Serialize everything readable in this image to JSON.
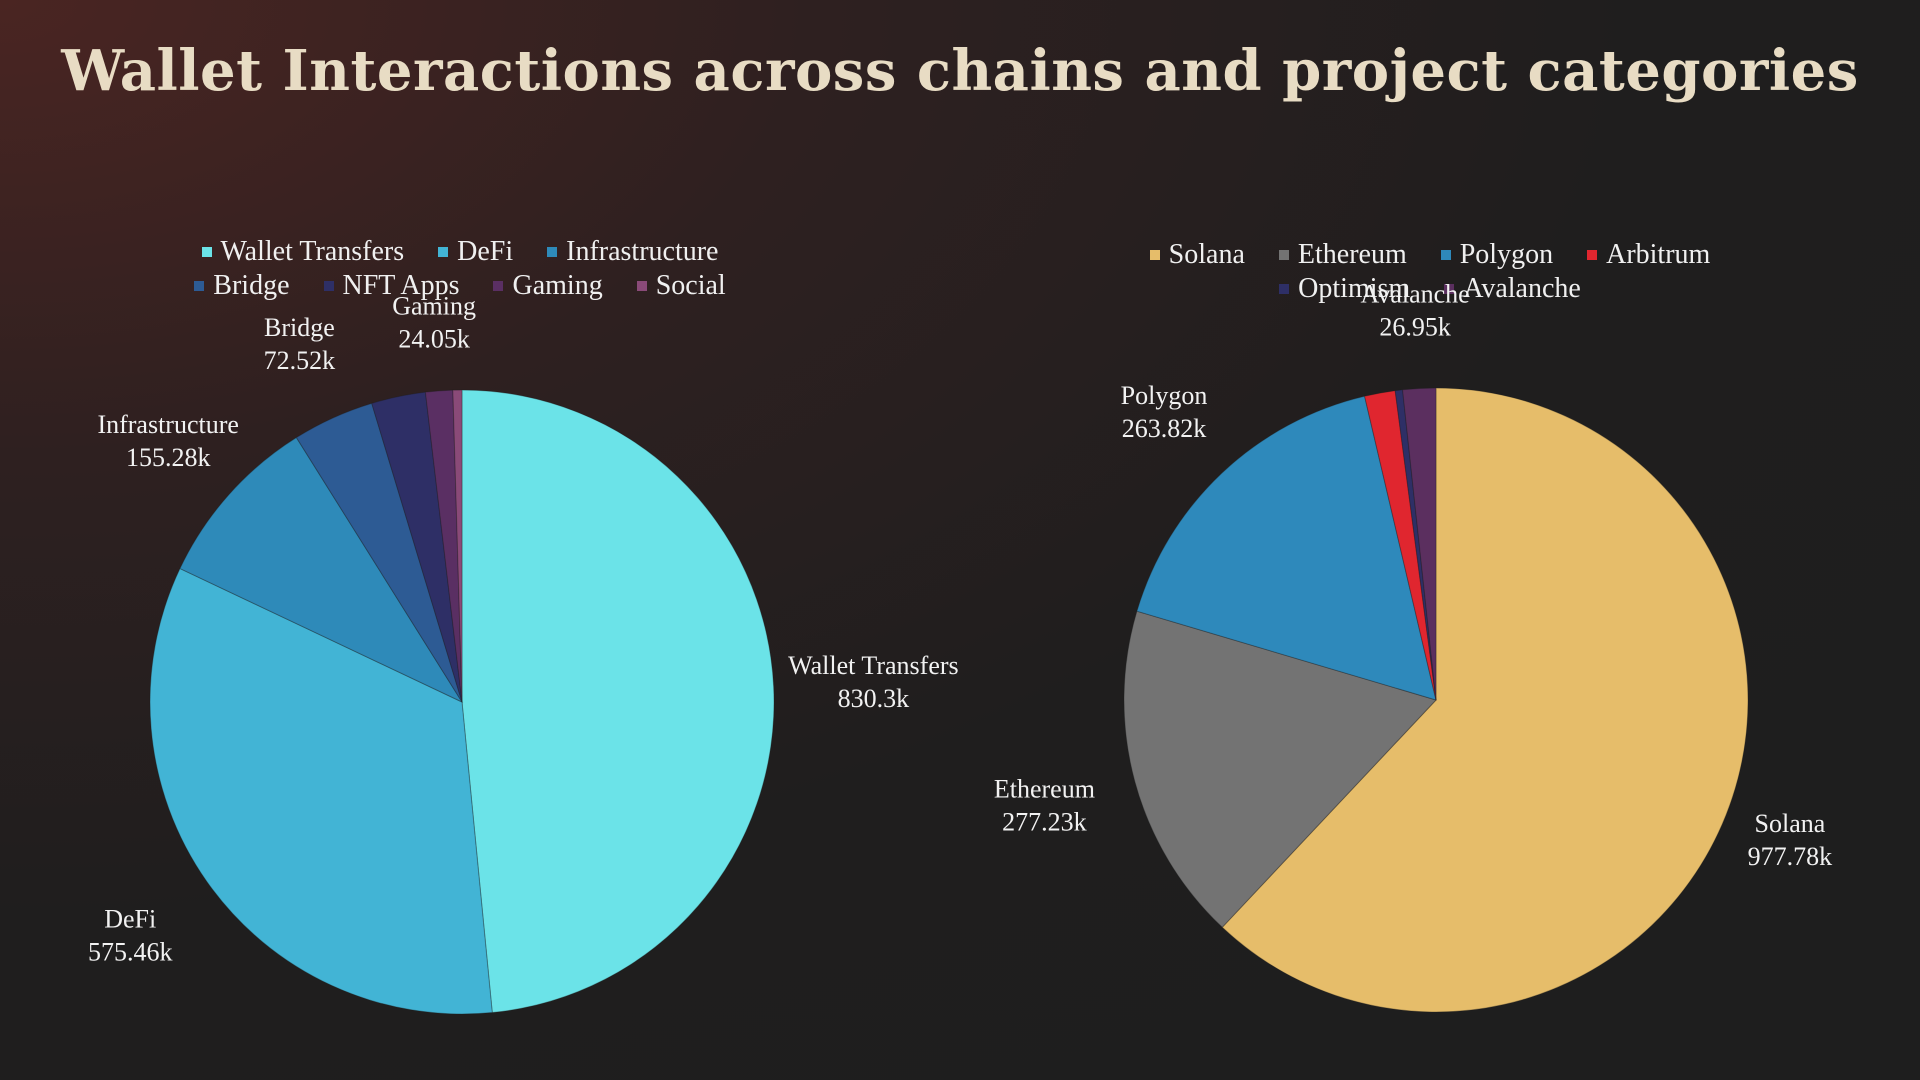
{
  "title": "Wallet Interactions across chains and project categories",
  "chart_data": [
    {
      "type": "pie",
      "categories": [
        "Wallet Transfers",
        "DeFi",
        "Infrastructure",
        "Bridge",
        "NFT Apps",
        "Gaming",
        "Social"
      ],
      "values": [
        830300,
        575460,
        155280,
        72520,
        48000,
        24050,
        8000
      ],
      "labels": [
        "830.3k",
        "575.46k",
        "155.28k",
        "72.52k",
        "",
        "24.05k",
        ""
      ],
      "colors": [
        "#6be3e8",
        "#42b4d5",
        "#2e8ab9",
        "#2d5b94",
        "#2e2f66",
        "#5a2f63",
        "#8a4a78"
      ],
      "legend_position": "top"
    },
    {
      "type": "pie",
      "categories": [
        "Solana",
        "Ethereum",
        "Polygon",
        "Arbitrum",
        "Optimism",
        "Avalanche"
      ],
      "values": [
        977780,
        277230,
        263820,
        25000,
        6000,
        26950
      ],
      "labels": [
        "977.78k",
        "277.23k",
        "263.82k",
        "",
        "",
        "26.95k"
      ],
      "colors": [
        "#e6bd6a",
        "#737373",
        "#2e89bb",
        "#e0262f",
        "#2e2f66",
        "#5b2f5f"
      ],
      "legend_position": "top"
    }
  ]
}
